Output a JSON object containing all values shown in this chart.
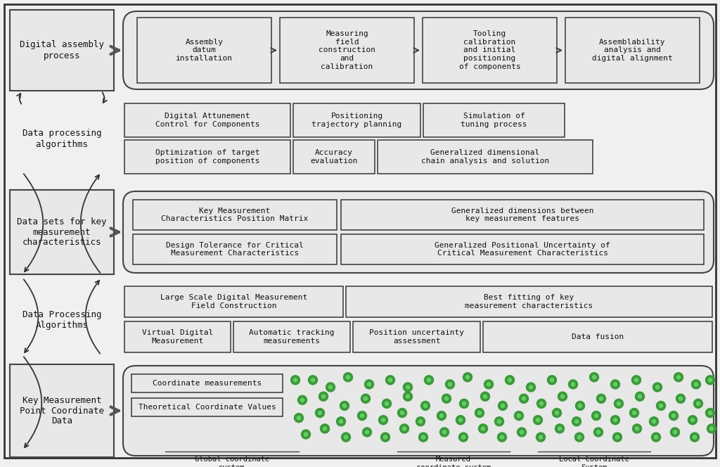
{
  "bg_color": "#f0f0f0",
  "box_bg": "#e8e8e8",
  "box_border": "#444444",
  "green_dot": "#3a9a3a",
  "green_dot_light": "#66cc66",
  "row1_left_box": "Digital assembly\nprocess",
  "row1_right_items": [
    "Assembly\ndatum\ninstallation",
    "Measuring\nfield\nconstruction\nand\ncalibration",
    "Tooling\ncalibration\nand initial\npositioning\nof components",
    "Assemblability\nanalysis and\ndigital alignment"
  ],
  "row2_label": "Data processing\nalgorithms",
  "row2_top_items": [
    "Digital Attunement\nControl for Components",
    "Positioning\ntrajectory planning",
    "Simulation of\ntuning process"
  ],
  "row2_bot_items": [
    "Optimization of target\nposition of components",
    "Accuracy\nevaluation",
    "Generalized dimensional\nchain analysis and solution"
  ],
  "row3_left_box": "Data sets for key\nmeasurement\ncharacteristics",
  "row3_top_items": [
    "Key Measurement\nCharacteristics Position Matrix",
    "Generalized dimensions between\nkey measurement features"
  ],
  "row3_bot_items": [
    "Design Tolerance for Critical\nMeasurement Characteristics",
    "Generalized Positional Uncertainty of\nCritical Measurement Characteristics"
  ],
  "row4_label": "Data Processing\nAlgorithms",
  "row4_top_items": [
    "Large Scale Digital Measurement\nField Construction",
    "Best fitting of key\nmeasurement characteristics"
  ],
  "row4_bot_items": [
    "Virtual Digital\nMeasurement",
    "Automatic tracking\nmeasurements",
    "Position uncertainty\nassessment",
    "Data fusion"
  ],
  "row5_left_box": "Key Measurement\nPoint Coordinate\nData",
  "row5_text_items": [
    "Coordinate measurements",
    "Theoretical Coordinate Values"
  ],
  "row5_bot_items": [
    "Global coordinate\nsystem",
    "Measured\ncoordinate system",
    "Local Coordinate\nSystem"
  ]
}
